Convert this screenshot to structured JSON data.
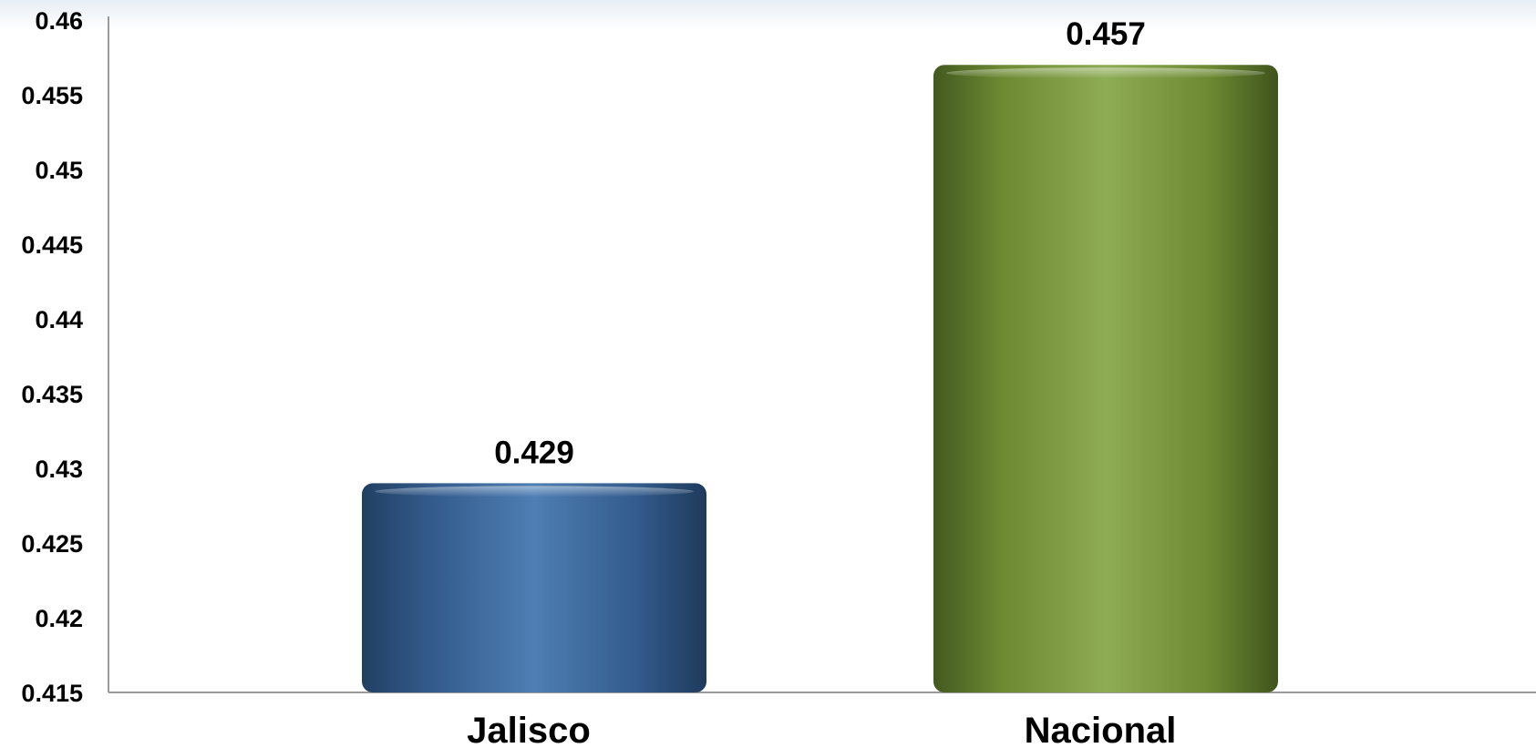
{
  "chart_data": {
    "type": "bar",
    "title": "",
    "xlabel": "",
    "ylabel": "",
    "categories": [
      "Jalisco",
      "Nacional"
    ],
    "values": [
      0.429,
      0.457
    ],
    "value_labels": [
      "0.429",
      "0.457"
    ],
    "ylim": [
      0.415,
      0.46
    ],
    "yticks": [
      0.415,
      0.42,
      0.425,
      0.43,
      0.435,
      0.44,
      0.445,
      0.45,
      0.455,
      0.46
    ],
    "ytick_labels": [
      "0.415",
      "0.42",
      "0.425",
      "0.43",
      "0.435",
      "0.44",
      "0.445",
      "0.45",
      "0.455",
      "0.46"
    ],
    "grid": false,
    "legend": "none",
    "colors": [
      "#3f6a9c",
      "#7c9a3e"
    ]
  }
}
